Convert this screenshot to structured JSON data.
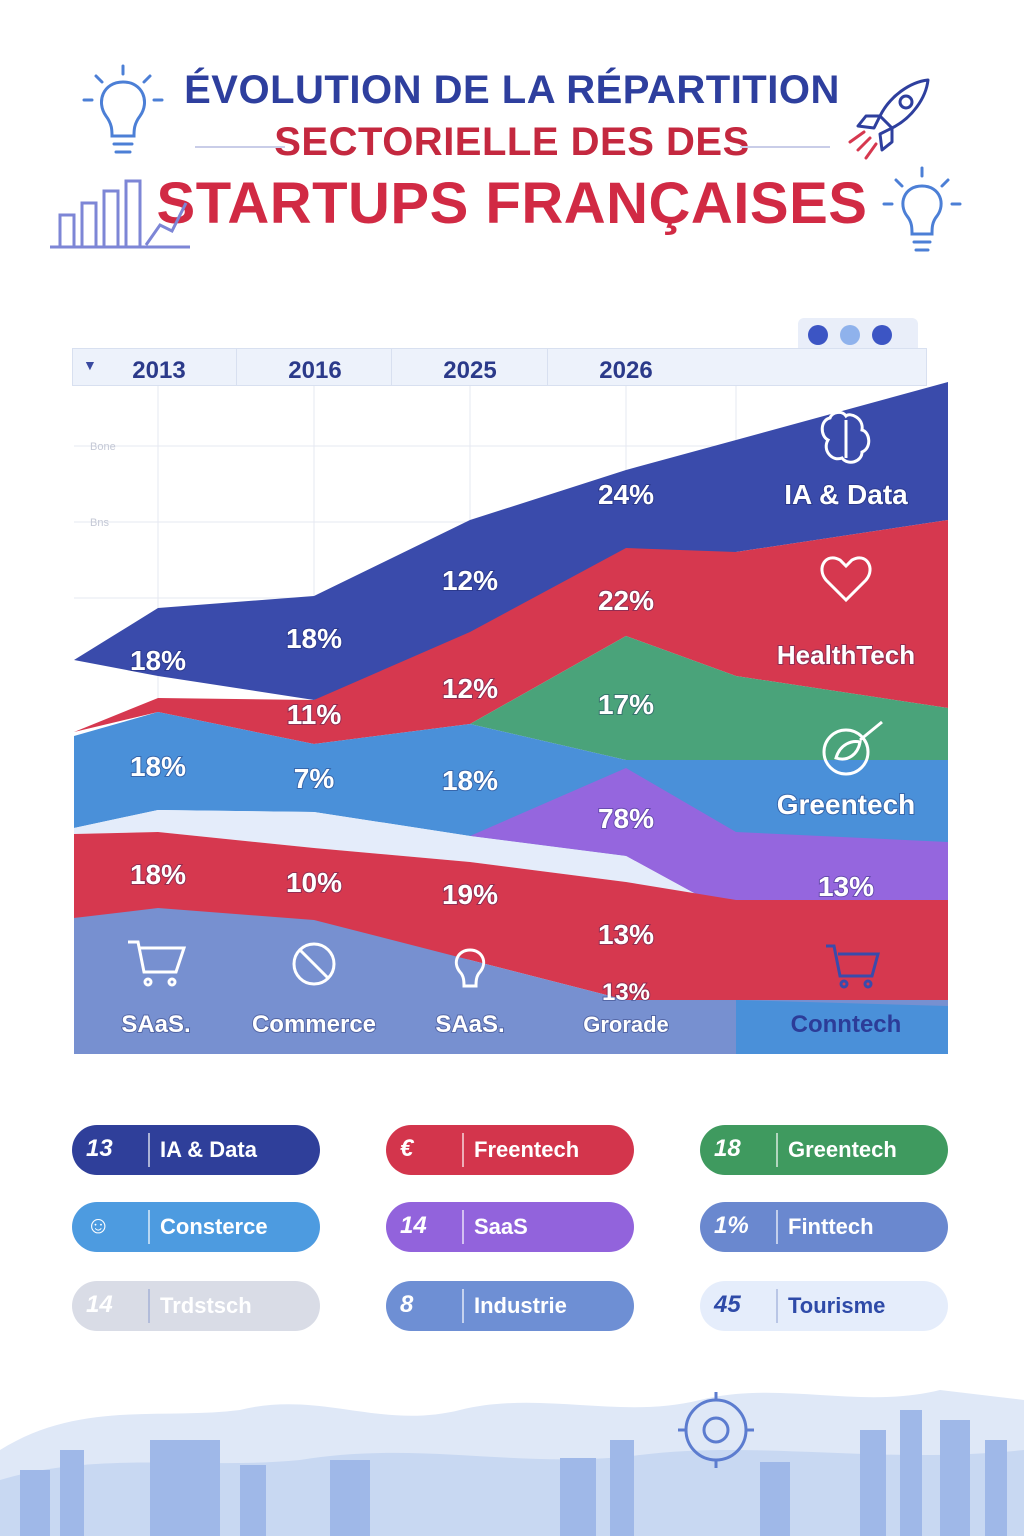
{
  "title": {
    "line1": "ÉVOLUTION DE LA RÉPARTITION",
    "line2": "SECTORIELLE DES DES",
    "line3": "STARTUPS FRANÇAISES"
  },
  "colors": {
    "ia_data": "#3a4bab",
    "healthtech": "#d6384f",
    "greentech": "#4aa37a",
    "commerce": "#4a90d9",
    "saas": "#9566de",
    "fintech": "#7790d0",
    "industrie": "#6f8ed2",
    "tourisme": "#e4ecfa",
    "insurtech": "#d7dbe8"
  },
  "chart_data": {
    "type": "area",
    "x": [
      "2013",
      "2016",
      "2025",
      "2026"
    ],
    "axis_faint_labels": [
      "Bone",
      "Bns"
    ],
    "data_labels": [
      {
        "col": 0,
        "text": "18%",
        "band": "ia_data"
      },
      {
        "col": 0,
        "text": "18%",
        "band": "commerce"
      },
      {
        "col": 0,
        "text": "18%",
        "band": "healthtech_lower"
      },
      {
        "col": 1,
        "text": "18%",
        "band": "ia_data"
      },
      {
        "col": 1,
        "text": "11%",
        "band": "healthtech"
      },
      {
        "col": 1,
        "text": "7%",
        "band": "commerce"
      },
      {
        "col": 1,
        "text": "10%",
        "band": "healthtech_lower"
      },
      {
        "col": 2,
        "text": "12%",
        "band": "ia_data"
      },
      {
        "col": 2,
        "text": "12%",
        "band": "healthtech"
      },
      {
        "col": 2,
        "text": "18%",
        "band": "commerce"
      },
      {
        "col": 2,
        "text": "19%",
        "band": "healthtech_lower"
      },
      {
        "col": 3,
        "text": "24%",
        "band": "ia_data"
      },
      {
        "col": 3,
        "text": "22%",
        "band": "healthtech"
      },
      {
        "col": 3,
        "text": "17%",
        "band": "greentech"
      },
      {
        "col": 3,
        "text": "78%",
        "band": "saas"
      },
      {
        "col": 3,
        "text": "13%",
        "band": "healthtech_lower"
      },
      {
        "col": 3,
        "text": "13%",
        "band": "base"
      },
      {
        "col": 4,
        "text": "13%",
        "band": "saas"
      }
    ],
    "band_labels": [
      "IA & Data",
      "HealthTech",
      "Greentech",
      "Conntech"
    ],
    "bottom_labels": [
      "SAaS.",
      "Commerce",
      "SAaS.",
      "Grorade"
    ]
  },
  "legend": [
    {
      "num": "13",
      "name": "IA & Data",
      "color": "#2f3f9a"
    },
    {
      "num": "€",
      "name": "Freentech",
      "color": "#d3354c"
    },
    {
      "num": "18",
      "name": "Greentech",
      "color": "#3f9a5f"
    },
    {
      "num": "☺",
      "name": "Consterce",
      "color": "#4d9be0"
    },
    {
      "num": "14",
      "name": "SaaS",
      "color": "#9263dc"
    },
    {
      "num": "1%",
      "name": "Finttech",
      "color": "#6a88cf"
    },
    {
      "num": "14",
      "name": "Trdstsch",
      "color": "#d9dce6"
    },
    {
      "num": "8",
      "name": "Industrie",
      "color": "#6e8fd4"
    },
    {
      "num": "45",
      "name": "Tourisme",
      "color": "#e5edfb"
    }
  ]
}
